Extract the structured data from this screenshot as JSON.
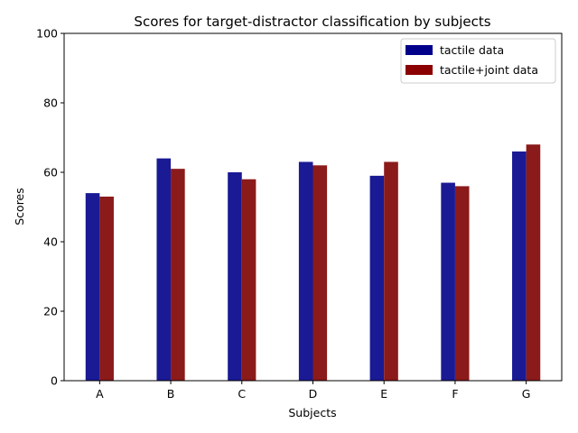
{
  "chart_data": {
    "type": "bar",
    "title": "Scores for target-distractor classification by subjects",
    "xlabel": "Subjects",
    "ylabel": "Scores",
    "ylim": [
      0,
      100
    ],
    "yticks": [
      0,
      20,
      40,
      60,
      80,
      100
    ],
    "categories": [
      "A",
      "B",
      "C",
      "D",
      "E",
      "F",
      "G"
    ],
    "series": [
      {
        "name": "tactile data",
        "color": "#1a1a94",
        "legend_color": "#00008b",
        "values": [
          54,
          64,
          60,
          63,
          59,
          57,
          66
        ]
      },
      {
        "name": "tactile+joint data",
        "color": "#8b1a1a",
        "legend_color": "#8b0000",
        "values": [
          53,
          61,
          58,
          62,
          63,
          56,
          68
        ]
      }
    ],
    "grid": false,
    "legend_position": "top-right"
  }
}
